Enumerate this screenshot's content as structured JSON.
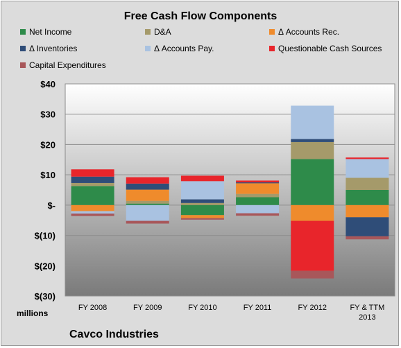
{
  "chart_data": {
    "type": "bar",
    "stacked": true,
    "title": "Free Cash Flow Components",
    "units_label": "millions",
    "footer": "Cavco Industries",
    "categories": [
      "FY 2008",
      "FY 2009",
      "FY 2010",
      "FY 2011",
      "FY 2012",
      "FY & TTM 2013"
    ],
    "ylim": [
      -30,
      40
    ],
    "y_ticks": [
      40,
      30,
      20,
      10,
      0,
      -10,
      -20,
      -30
    ],
    "y_tick_labels": [
      "$40",
      "$30",
      "$20",
      "$10",
      "$-",
      "$(10)",
      "$(20)",
      "$(30)"
    ],
    "grid": true,
    "legend_position": "top",
    "series": [
      {
        "name": "Net Income",
        "color": "#2e8b4a",
        "values": [
          6.3,
          0.5,
          -3.3,
          2.6,
          15.2,
          5.0
        ]
      },
      {
        "name": "D&A",
        "color": "#a59a6a",
        "values": [
          1.0,
          0.9,
          0.7,
          1.1,
          5.6,
          4.0
        ]
      },
      {
        "name": "Δ Accounts Rec.",
        "color": "#ef8b2c",
        "values": [
          -2.0,
          3.7,
          -1.0,
          3.5,
          -5.2,
          -4.0
        ]
      },
      {
        "name": "Δ Inventories",
        "color": "#2f4d78",
        "values": [
          2.1,
          2.0,
          1.2,
          0.3,
          1.0,
          -6.3
        ]
      },
      {
        "name": "Δ Accounts Pay.",
        "color": "#a9c2e1",
        "values": [
          -0.8,
          -5.2,
          6.0,
          -2.7,
          11.0,
          6.2
        ]
      },
      {
        "name": "Questionable Cash Sources",
        "color": "#e8252b",
        "values": [
          2.4,
          2.1,
          1.8,
          0.6,
          -16.5,
          0.5
        ]
      },
      {
        "name": "Capital Expenditures",
        "color": "#a8575a",
        "values": [
          -0.8,
          -0.9,
          -0.5,
          -0.8,
          -2.5,
          -1.0
        ]
      }
    ]
  }
}
